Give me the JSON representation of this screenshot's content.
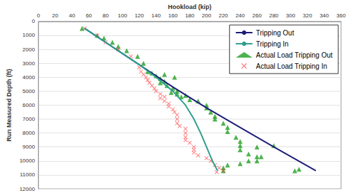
{
  "chart_data": {
    "type": "line",
    "x_label": "Hookload (kip)",
    "y_label": "Run Measured Depth (ft)",
    "xlim": [
      0,
      360
    ],
    "xticks": [
      0,
      20,
      40,
      60,
      80,
      100,
      120,
      140,
      160,
      180,
      200,
      220,
      240,
      260,
      280,
      300,
      320,
      340,
      360
    ],
    "ylim": [
      0,
      12000
    ],
    "yticks": [
      0,
      1000,
      2000,
      3000,
      4000,
      5000,
      6000,
      7000,
      8000,
      9000,
      10000,
      11000,
      12000
    ],
    "grid": true,
    "legend": "upper right",
    "series": [
      {
        "name": "Tripping Out",
        "type": "line",
        "color": "#1c1c78",
        "marker": "none",
        "line_style": "solid",
        "x": [
          55,
          80,
          100,
          130,
          160,
          200,
          240,
          280,
          330
        ],
        "values": [
          500,
          1500,
          2300,
          3500,
          4700,
          6200,
          7600,
          9000,
          10700
        ]
      },
      {
        "name": "Tripping In",
        "type": "line",
        "color": "#2e9e8e",
        "marker": "none",
        "line_style": "solid",
        "x": [
          55,
          80,
          100,
          120,
          140,
          160,
          175,
          185,
          193,
          200,
          207,
          213
        ],
        "values": [
          500,
          1500,
          2300,
          3100,
          4000,
          5000,
          6000,
          7000,
          8000,
          9000,
          10000,
          10700
        ]
      },
      {
        "name": "Actual Load Tripping Out",
        "type": "scatter",
        "color": "#22a022",
        "marker": "triangle",
        "x": [
          52,
          70,
          78,
          88,
          95,
          105,
          118,
          125,
          130,
          135,
          140,
          145,
          150,
          150,
          162,
          145,
          153,
          160,
          158,
          165,
          165,
          170,
          175,
          180,
          190,
          200,
          200,
          205,
          210,
          210,
          220,
          225,
          225,
          235,
          240,
          240,
          240,
          250,
          260,
          260,
          260,
          250,
          265,
          280,
          305,
          310,
          240,
          225,
          220,
          220
        ],
        "values": [
          500,
          1000,
          1200,
          1500,
          1800,
          2100,
          2500,
          3000,
          3600,
          3700,
          3900,
          4100,
          4300,
          3800,
          4000,
          4400,
          4600,
          4800,
          5100,
          5000,
          5200,
          5400,
          5300,
          5600,
          5700,
          6000,
          6200,
          6500,
          6800,
          7000,
          7300,
          7600,
          7900,
          8300,
          8600,
          8900,
          9200,
          9500,
          9000,
          9700,
          10000,
          10000,
          9700,
          8900,
          10700,
          10600,
          10200,
          10300,
          10500,
          10700
        ]
      },
      {
        "name": "Actual Load Tripping In",
        "type": "scatter",
        "color": "#ff4a4a",
        "marker": "x",
        "x": [
          55,
          70,
          80,
          95,
          110,
          120,
          122,
          125,
          128,
          130,
          132,
          135,
          138,
          140,
          145,
          150,
          145,
          150,
          155,
          155,
          160,
          162,
          165,
          165,
          165,
          168,
          175,
          175,
          175,
          175,
          180,
          185,
          185,
          185,
          190,
          200,
          205,
          210,
          215,
          220,
          212
        ],
        "values": [
          500,
          1000,
          1500,
          2000,
          2500,
          3300,
          3600,
          3800,
          4000,
          4200,
          4400,
          4600,
          4800,
          5000,
          5200,
          5400,
          5500,
          5700,
          5900,
          6100,
          6300,
          6500,
          6700,
          7000,
          7300,
          7500,
          7700,
          8000,
          8300,
          8500,
          8700,
          9000,
          9200,
          9400,
          9600,
          9800,
          10000,
          10300,
          10500,
          10700,
          10800
        ]
      }
    ]
  }
}
